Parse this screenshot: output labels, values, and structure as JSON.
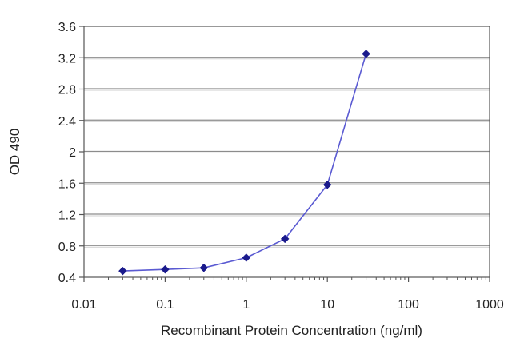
{
  "chart_data": {
    "type": "line",
    "title": "",
    "xlabel": "Recombinant Protein Concentration (ng/ml)",
    "ylabel": "OD 490",
    "x_scale": "log",
    "xlim": [
      0.01,
      1000
    ],
    "ylim": [
      0.4,
      3.6
    ],
    "x_ticks": [
      0.01,
      0.1,
      1,
      10,
      100,
      1000
    ],
    "x_tick_labels": [
      "0.01",
      "0.1",
      "1",
      "10",
      "100",
      "1000"
    ],
    "y_ticks": [
      0.4,
      0.8,
      1.2,
      1.6,
      2,
      2.4,
      2.8,
      3.2,
      3.6
    ],
    "y_tick_labels": [
      "0.4",
      "0.8",
      "1.2",
      "1.6",
      "2",
      "2.4",
      "2.8",
      "3.2",
      "3.6"
    ],
    "grid": "horizontal",
    "legend": "none",
    "series": [
      {
        "x": [
          0.03,
          0.1,
          0.3,
          1,
          3,
          10,
          30
        ],
        "y": [
          0.48,
          0.5,
          0.52,
          0.65,
          0.89,
          1.58,
          3.25
        ]
      }
    ],
    "colors": {
      "line": "#5a5ad2",
      "marker": "#1a1a8c",
      "grid": "#8c8c8c",
      "frame": "#555555",
      "background": "#ffffff"
    }
  }
}
